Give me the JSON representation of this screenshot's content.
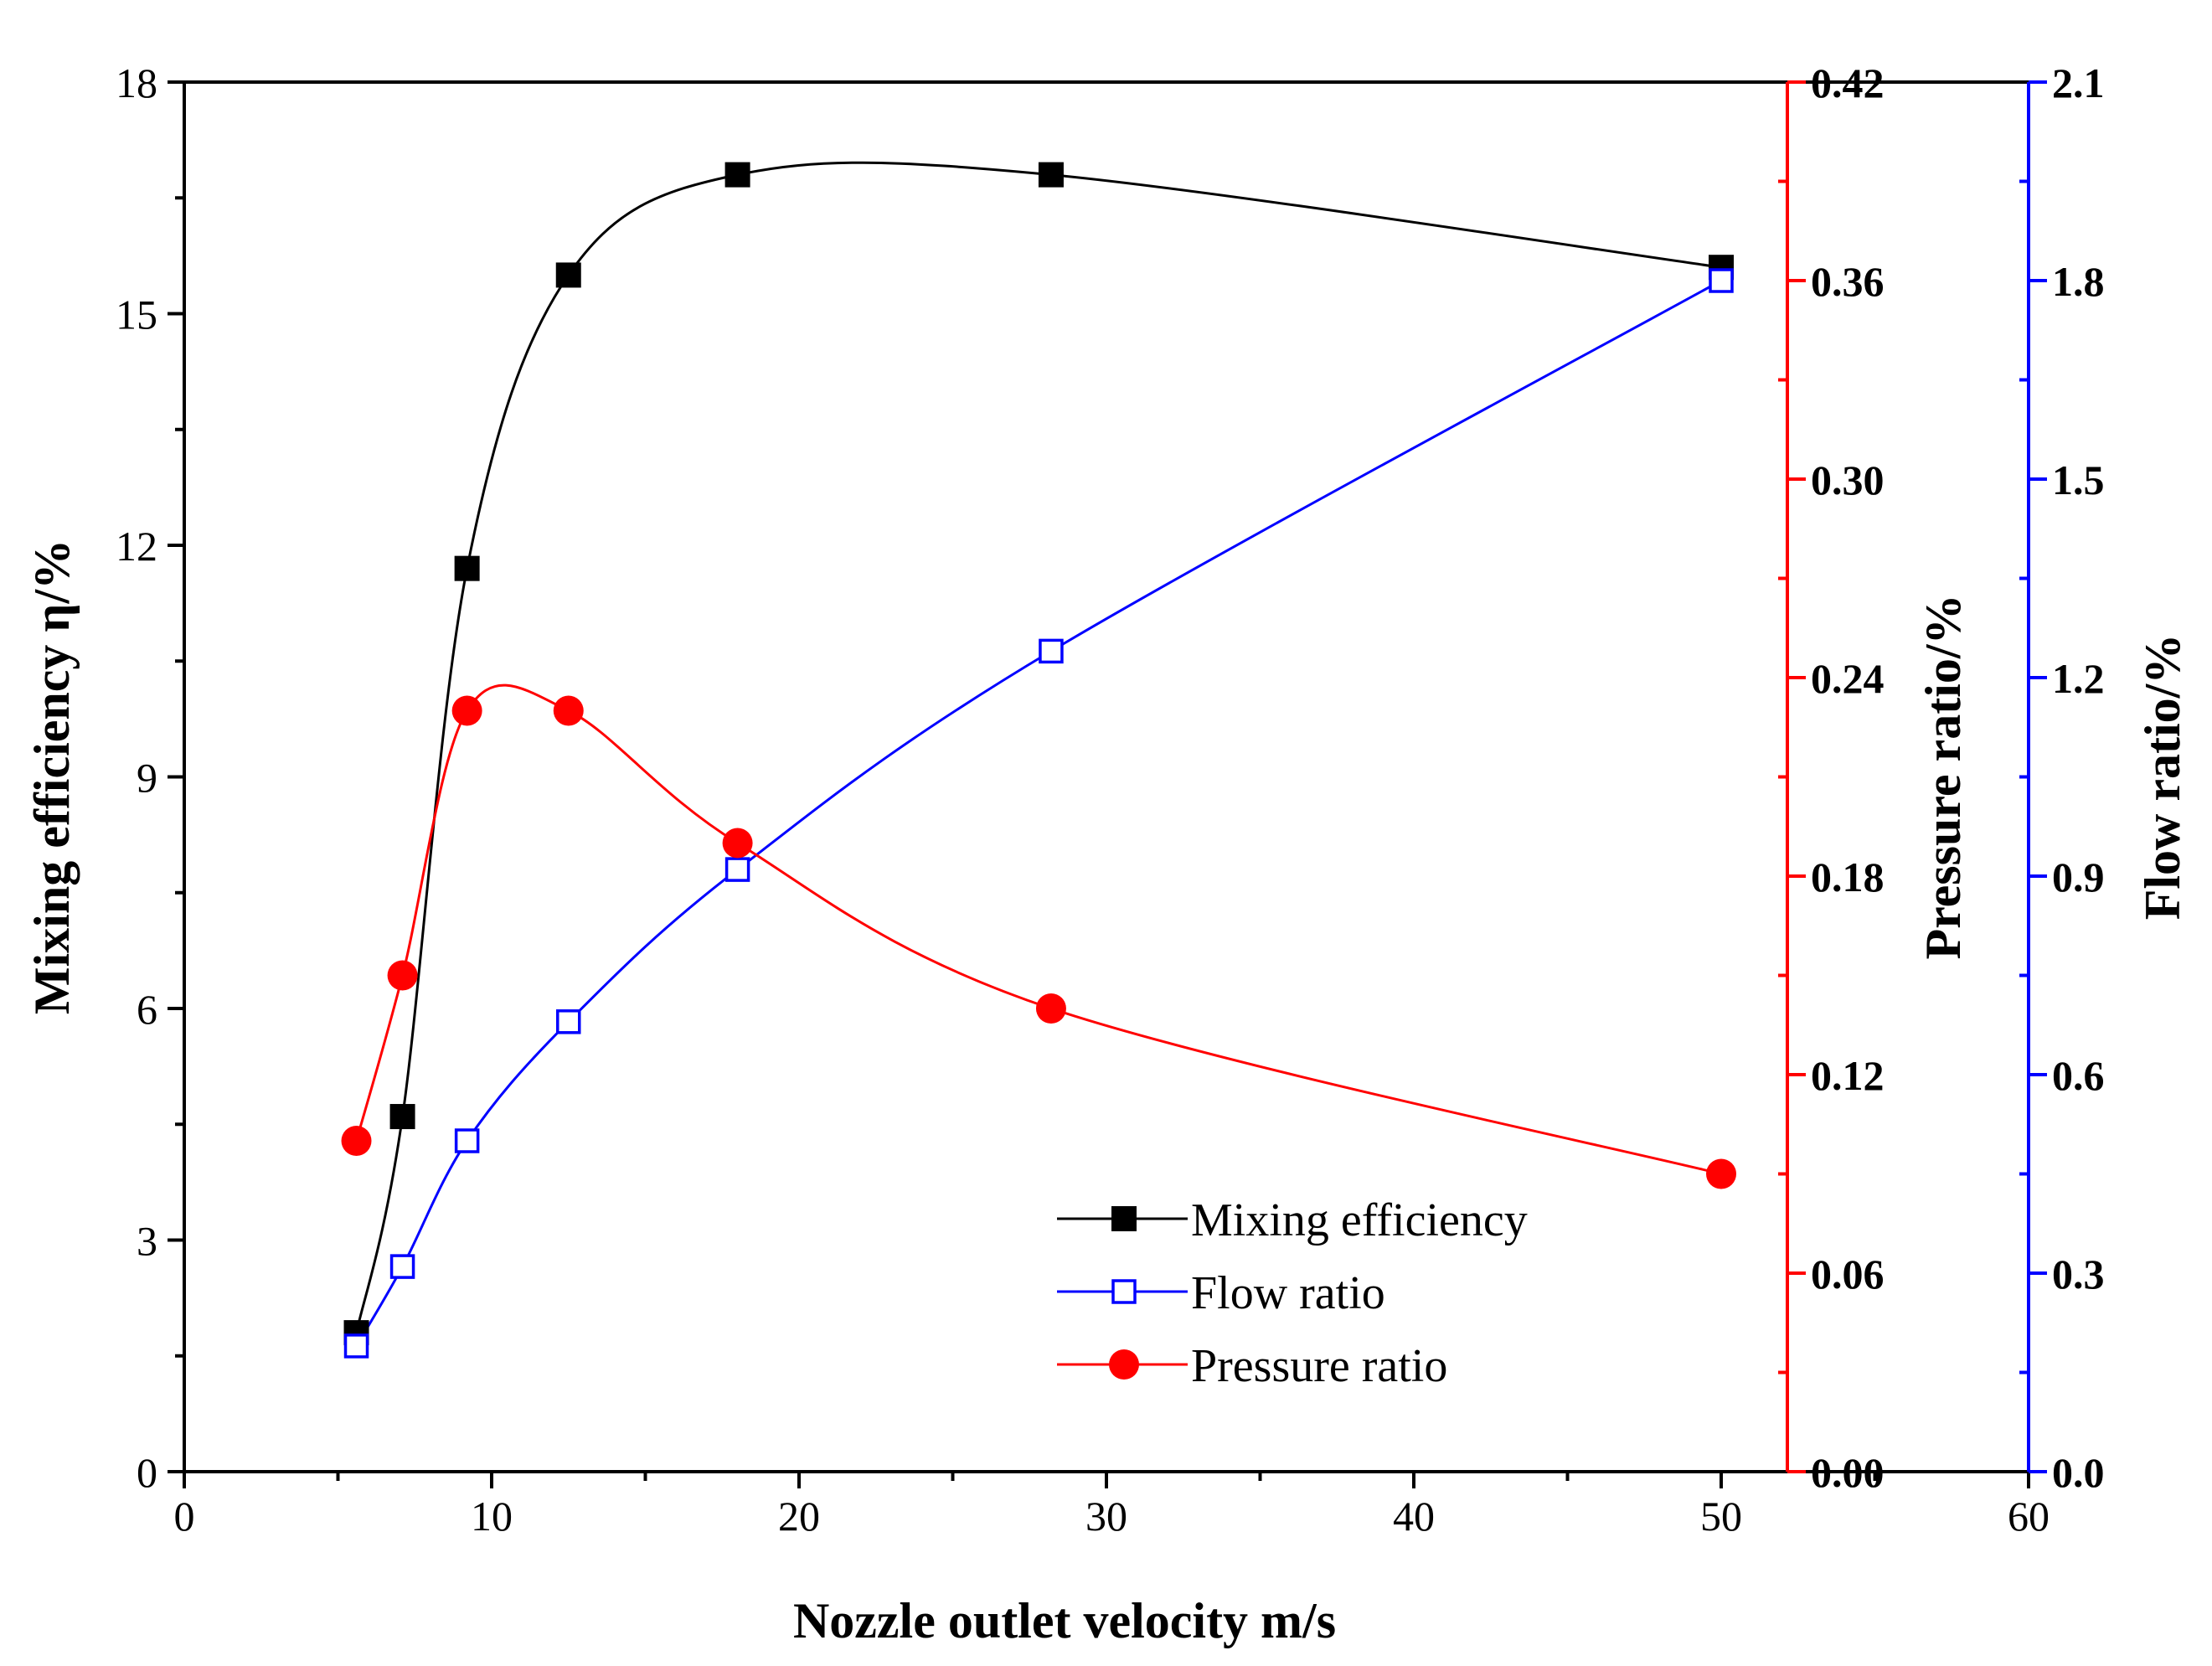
{
  "chart_data": {
    "type": "line",
    "xlabel": "Nozzle outlet velocity m/s",
    "xlim": [
      0,
      60
    ],
    "xticks": [
      0,
      10,
      20,
      30,
      40,
      50,
      60
    ],
    "axes": {
      "left": {
        "label": "Mixing efficiency η/%",
        "lim": [
          0,
          18
        ],
        "ticks": [
          0,
          3,
          6,
          9,
          12,
          15,
          18
        ],
        "tick_labels": [
          "0",
          "3",
          "6",
          "9",
          "12",
          "15",
          "18"
        ],
        "color": "#000000"
      },
      "right1": {
        "label": "Pressure ratio/%",
        "lim": [
          0,
          0.42
        ],
        "ticks": [
          0,
          0.06,
          0.12,
          0.18,
          0.24,
          0.3,
          0.36,
          0.42
        ],
        "tick_labels": [
          "0.00",
          "0.06",
          "0.12",
          "0.18",
          "0.24",
          "0.30",
          "0.36",
          "0.42"
        ],
        "color": "#ff0000"
      },
      "right2": {
        "label": "Flow ratio/%",
        "lim": [
          0,
          2.1
        ],
        "ticks": [
          0,
          0.3,
          0.6,
          0.9,
          1.2,
          1.5,
          1.8,
          2.1
        ],
        "tick_labels": [
          "0.0",
          "0.3",
          "0.6",
          "0.9",
          "1.2",
          "1.5",
          "1.8",
          "2.1"
        ],
        "color": "#0000ff"
      }
    },
    "series": [
      {
        "name": "Mixing efficiency",
        "axis": "left",
        "color": "#000000",
        "marker": "filled-square",
        "x": [
          5.6,
          7.1,
          9.2,
          12.5,
          18.0,
          28.2,
          50.0
        ],
        "y": [
          1.8,
          4.6,
          11.7,
          15.5,
          16.8,
          16.8,
          15.6
        ]
      },
      {
        "name": "Flow ratio",
        "axis": "right2",
        "color": "#0000ff",
        "marker": "open-square",
        "x": [
          5.6,
          7.1,
          9.2,
          12.5,
          18.0,
          28.2,
          50.0
        ],
        "y": [
          0.19,
          0.31,
          0.5,
          0.68,
          0.91,
          1.24,
          1.8
        ]
      },
      {
        "name": "Pressure ratio",
        "axis": "right1",
        "color": "#ff0000",
        "marker": "filled-circle",
        "x": [
          5.6,
          7.1,
          9.2,
          12.5,
          18.0,
          28.2,
          50.0
        ],
        "y": [
          0.1,
          0.15,
          0.23,
          0.23,
          0.19,
          0.14,
          0.09
        ]
      }
    ],
    "legend": {
      "placement": "bottom-center-right",
      "entries": [
        "Mixing efficiency",
        "Flow ratio",
        "Pressure ratio"
      ]
    }
  }
}
